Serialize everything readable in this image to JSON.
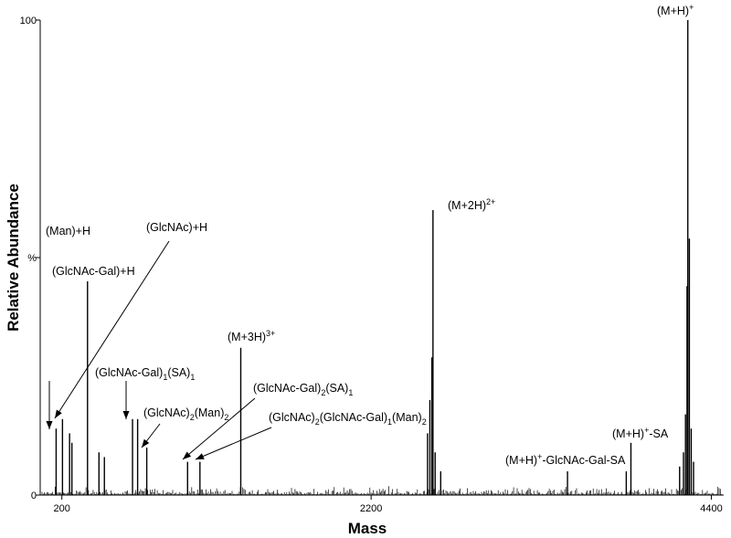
{
  "chart_data": {
    "type": "line",
    "xlabel": "Mass",
    "ylabel": "Relative Abundance",
    "xlim": [
      60,
      4480
    ],
    "ylim": [
      0,
      100
    ],
    "x_ticks": [
      {
        "value": 200,
        "label": "200"
      },
      {
        "value": 2200,
        "label": "2200"
      },
      {
        "value": 4400,
        "label": "4400"
      }
    ],
    "y_ticks": [
      {
        "value": 0,
        "label": "0"
      },
      {
        "value": 50,
        "label": "%"
      },
      {
        "value": 100,
        "label": "100"
      }
    ],
    "peaks": [
      {
        "x": 163,
        "y": 14
      },
      {
        "x": 204,
        "y": 16
      },
      {
        "x": 250,
        "y": 13
      },
      {
        "x": 265,
        "y": 11
      },
      {
        "x": 366,
        "y": 45
      },
      {
        "x": 440,
        "y": 9
      },
      {
        "x": 475,
        "y": 8
      },
      {
        "x": 657,
        "y": 16
      },
      {
        "x": 690,
        "y": 16
      },
      {
        "x": 749,
        "y": 10
      },
      {
        "x": 1013,
        "y": 7
      },
      {
        "x": 1093,
        "y": 7
      },
      {
        "x": 1357,
        "y": 31
      },
      {
        "x": 2565,
        "y": 13
      },
      {
        "x": 2580,
        "y": 20
      },
      {
        "x": 2593,
        "y": 29
      },
      {
        "x": 2600,
        "y": 60
      },
      {
        "x": 2614,
        "y": 9
      },
      {
        "x": 2650,
        "y": 5
      },
      {
        "x": 3470,
        "y": 5
      },
      {
        "x": 3880,
        "y": 11
      },
      {
        "x": 3850,
        "y": 5
      },
      {
        "x": 4195,
        "y": 6
      },
      {
        "x": 4220,
        "y": 9
      },
      {
        "x": 4233,
        "y": 17
      },
      {
        "x": 4243,
        "y": 44
      },
      {
        "x": 4248,
        "y": 100
      },
      {
        "x": 4258,
        "y": 54
      },
      {
        "x": 4270,
        "y": 14
      },
      {
        "x": 4285,
        "y": 7
      }
    ],
    "annotations": [
      {
        "parts": [
          {
            "t": "(Man)+H"
          }
        ]
      },
      {
        "parts": [
          {
            "t": "(GlcNAc)+H"
          }
        ]
      },
      {
        "parts": [
          {
            "t": "(GlcNAc-Gal)+H"
          }
        ]
      },
      {
        "parts": [
          {
            "t": "(GlcNAc-Gal)"
          },
          {
            "t": "1",
            "sub": true
          },
          {
            "t": "(SA)"
          },
          {
            "t": "1",
            "sub": true
          }
        ]
      },
      {
        "parts": [
          {
            "t": "(GlcNAc)"
          },
          {
            "t": "2",
            "sub": true
          },
          {
            "t": "(Man)"
          },
          {
            "t": "2",
            "sub": true
          }
        ]
      },
      {
        "parts": [
          {
            "t": "(GlcNAc-Gal)"
          },
          {
            "t": "2",
            "sub": true
          },
          {
            "t": "(SA)"
          },
          {
            "t": "1",
            "sub": true
          }
        ]
      },
      {
        "parts": [
          {
            "t": "(GlcNAc)"
          },
          {
            "t": "2",
            "sub": true
          },
          {
            "t": "(GlcNAc-Gal)"
          },
          {
            "t": "1",
            "sub": true
          },
          {
            "t": "(Man)"
          },
          {
            "t": "2",
            "sub": true
          }
        ]
      },
      {
        "parts": [
          {
            "t": "(M+3H)"
          },
          {
            "t": "3+",
            "sup": true
          }
        ]
      },
      {
        "parts": [
          {
            "t": "(M+2H)"
          },
          {
            "t": "2+",
            "sup": true
          }
        ]
      },
      {
        "parts": [
          {
            "t": "(M+H)"
          },
          {
            "t": "+",
            "sup": true
          },
          {
            "t": "-GlcNAc-Gal-SA"
          }
        ]
      },
      {
        "parts": [
          {
            "t": "(M+H)"
          },
          {
            "t": "+",
            "sup": true
          },
          {
            "t": "-SA"
          }
        ]
      },
      {
        "parts": [
          {
            "t": "(M+H)"
          },
          {
            "t": "+",
            "sup": true
          }
        ]
      }
    ],
    "grid": false
  }
}
